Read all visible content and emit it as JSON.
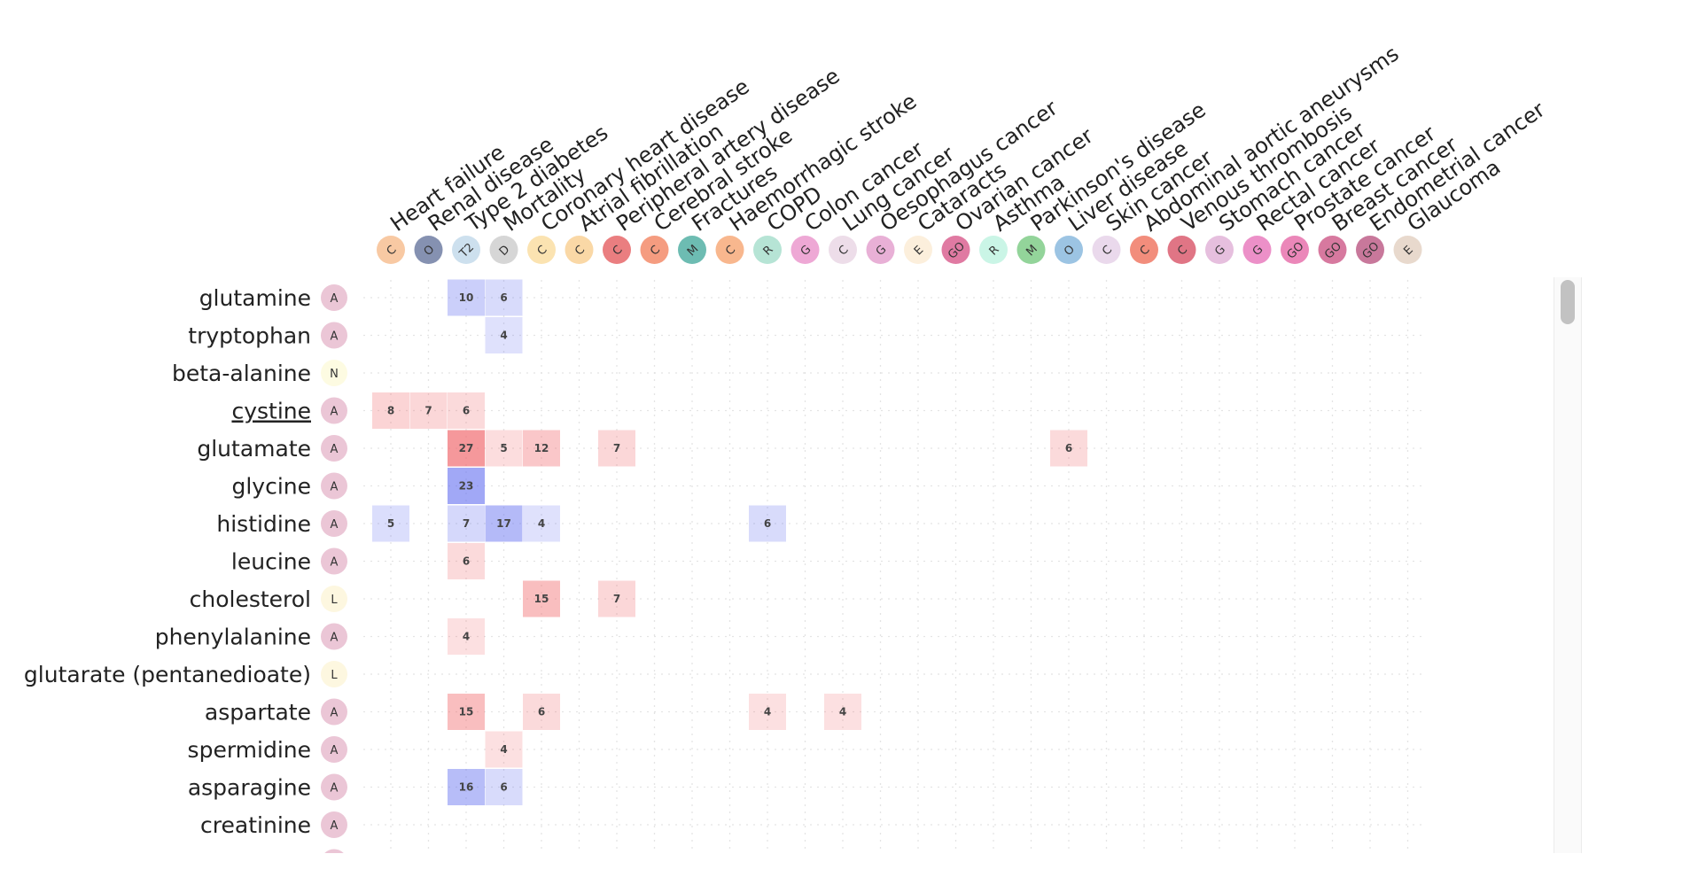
{
  "chart_data": {
    "type": "heatmap",
    "columns": [
      {
        "label": "Heart failure",
        "badge": "C",
        "color": "#f8c9a3"
      },
      {
        "label": "Renal disease",
        "badge": "O",
        "color": "#8591b1"
      },
      {
        "label": "Type 2 diabetes",
        "badge": "T2",
        "color": "#cde0ee"
      },
      {
        "label": "Mortality",
        "badge": "D",
        "color": "#d6d6d6"
      },
      {
        "label": "Coronary heart disease",
        "badge": "C",
        "color": "#fbe3b1"
      },
      {
        "label": "Atrial fibrillation",
        "badge": "C",
        "color": "#fad8a6"
      },
      {
        "label": "Peripheral artery disease",
        "badge": "C",
        "color": "#ea7e80"
      },
      {
        "label": "Cerebral stroke",
        "badge": "C",
        "color": "#f59c80"
      },
      {
        "label": "Fractures",
        "badge": "M",
        "color": "#6dbcb2"
      },
      {
        "label": "Haemorrhagic stroke",
        "badge": "C",
        "color": "#f8b78e"
      },
      {
        "label": "COPD",
        "badge": "R",
        "color": "#b6e4d5"
      },
      {
        "label": "Colon cancer",
        "badge": "G",
        "color": "#eea8d5"
      },
      {
        "label": "Lung cancer",
        "badge": "C",
        "color": "#eddde9"
      },
      {
        "label": "Oesophagus cancer",
        "badge": "G",
        "color": "#e8b0d6"
      },
      {
        "label": "Cataracts",
        "badge": "E",
        "color": "#fcefdc"
      },
      {
        "label": "Ovarian cancer",
        "badge": "GO",
        "color": "#e07aa2"
      },
      {
        "label": "Asthma",
        "badge": "R",
        "color": "#caf5e6"
      },
      {
        "label": "Parkinson's disease",
        "badge": "M",
        "color": "#93d49a"
      },
      {
        "label": "Liver disease",
        "badge": "O",
        "color": "#9cc4e3"
      },
      {
        "label": "Skin cancer",
        "badge": "C",
        "color": "#ead9ec"
      },
      {
        "label": "Abdominal aortic aneurysms",
        "badge": "C",
        "color": "#f28d7c"
      },
      {
        "label": "Venous thrombosis",
        "badge": "C",
        "color": "#e07585"
      },
      {
        "label": "Stomach cancer",
        "badge": "G",
        "color": "#e6bfde"
      },
      {
        "label": "Rectal cancer",
        "badge": "G",
        "color": "#ec90c8"
      },
      {
        "label": "Prostate cancer",
        "badge": "GO",
        "color": "#eb87b9"
      },
      {
        "label": "Breast cancer",
        "badge": "GO",
        "color": "#d7799f"
      },
      {
        "label": "Endometrial cancer",
        "badge": "GO",
        "color": "#c8789b"
      },
      {
        "label": "Glaucoma",
        "badge": "E",
        "color": "#e8d9cd"
      }
    ],
    "rows": [
      {
        "label": "glutamine",
        "badge": "A"
      },
      {
        "label": "tryptophan",
        "badge": "A"
      },
      {
        "label": "beta-alanine",
        "badge": "N"
      },
      {
        "label": "cystine",
        "badge": "A"
      },
      {
        "label": "glutamate",
        "badge": "A"
      },
      {
        "label": "glycine",
        "badge": "A"
      },
      {
        "label": "histidine",
        "badge": "A"
      },
      {
        "label": "leucine",
        "badge": "A"
      },
      {
        "label": "cholesterol",
        "badge": "L"
      },
      {
        "label": "phenylalanine",
        "badge": "A"
      },
      {
        "label": "glutarate (pentanedioate)",
        "badge": "L"
      },
      {
        "label": "aspartate",
        "badge": "A"
      },
      {
        "label": "spermidine",
        "badge": "A"
      },
      {
        "label": "asparagine",
        "badge": "A"
      },
      {
        "label": "creatinine",
        "badge": "A"
      }
    ],
    "underlined_row": "cystine",
    "row_badge_colors": {
      "A": "#ebc6d6",
      "N": "#fdfbe2",
      "L": "#fdf7e0"
    },
    "cells": [
      {
        "row": "glutamine",
        "col": "Type 2 diabetes",
        "value": 10,
        "direction": "negative"
      },
      {
        "row": "glutamine",
        "col": "Mortality",
        "value": 6,
        "direction": "negative"
      },
      {
        "row": "tryptophan",
        "col": "Mortality",
        "value": 4,
        "direction": "negative"
      },
      {
        "row": "cystine",
        "col": "Heart failure",
        "value": 8,
        "direction": "positive"
      },
      {
        "row": "cystine",
        "col": "Renal disease",
        "value": 7,
        "direction": "positive"
      },
      {
        "row": "cystine",
        "col": "Type 2 diabetes",
        "value": 6,
        "direction": "positive"
      },
      {
        "row": "glutamate",
        "col": "Type 2 diabetes",
        "value": 27,
        "direction": "positive"
      },
      {
        "row": "glutamate",
        "col": "Mortality",
        "value": 5,
        "direction": "positive"
      },
      {
        "row": "glutamate",
        "col": "Coronary heart disease",
        "value": 12,
        "direction": "positive"
      },
      {
        "row": "glutamate",
        "col": "Peripheral artery disease",
        "value": 7,
        "direction": "positive"
      },
      {
        "row": "glutamate",
        "col": "Liver disease",
        "value": 6,
        "direction": "positive"
      },
      {
        "row": "glycine",
        "col": "Type 2 diabetes",
        "value": 23,
        "direction": "negative"
      },
      {
        "row": "histidine",
        "col": "Heart failure",
        "value": 5,
        "direction": "negative"
      },
      {
        "row": "histidine",
        "col": "Type 2 diabetes",
        "value": 7,
        "direction": "negative"
      },
      {
        "row": "histidine",
        "col": "Mortality",
        "value": 17,
        "direction": "negative"
      },
      {
        "row": "histidine",
        "col": "Coronary heart disease",
        "value": 4,
        "direction": "negative"
      },
      {
        "row": "histidine",
        "col": "COPD",
        "value": 6,
        "direction": "negative"
      },
      {
        "row": "leucine",
        "col": "Type 2 diabetes",
        "value": 6,
        "direction": "positive"
      },
      {
        "row": "cholesterol",
        "col": "Coronary heart disease",
        "value": 15,
        "direction": "positive"
      },
      {
        "row": "cholesterol",
        "col": "Peripheral artery disease",
        "value": 7,
        "direction": "positive"
      },
      {
        "row": "phenylalanine",
        "col": "Type 2 diabetes",
        "value": 4,
        "direction": "positive"
      },
      {
        "row": "aspartate",
        "col": "Type 2 diabetes",
        "value": 15,
        "direction": "positive"
      },
      {
        "row": "aspartate",
        "col": "Coronary heart disease",
        "value": 6,
        "direction": "positive"
      },
      {
        "row": "aspartate",
        "col": "COPD",
        "value": 4,
        "direction": "positive"
      },
      {
        "row": "aspartate",
        "col": "Lung cancer",
        "value": 4,
        "direction": "positive"
      },
      {
        "row": "spermidine",
        "col": "Mortality",
        "value": 4,
        "direction": "positive"
      },
      {
        "row": "asparagine",
        "col": "Type 2 diabetes",
        "value": 16,
        "direction": "negative"
      },
      {
        "row": "asparagine",
        "col": "Mortality",
        "value": 6,
        "direction": "negative"
      }
    ],
    "colors": {
      "positive": "#f0666a",
      "negative": "#5f6bf0"
    },
    "grid": true,
    "legend": "none"
  }
}
